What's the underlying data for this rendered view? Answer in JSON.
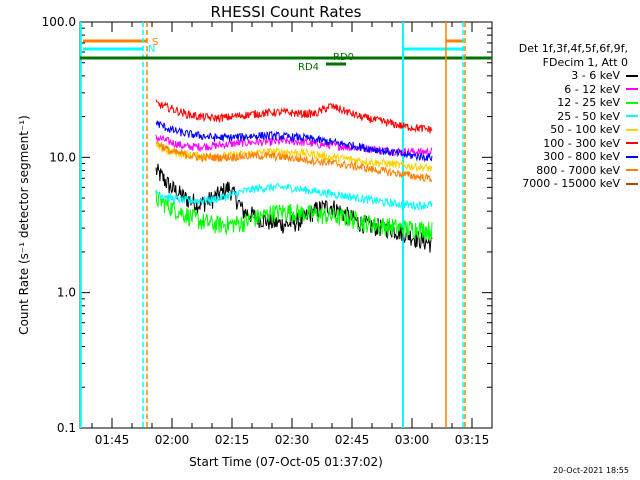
{
  "chart_data": {
    "type": "line",
    "title": "RHESSI Count Rates",
    "xlabel": "Start Time (07-Oct-05 01:37:02)",
    "ylabel": "Count Rate (s⁻¹ detector segment⁻¹)",
    "yscale": "log",
    "ylim": [
      0.1,
      100
    ],
    "yticks": [
      0.1,
      1.0,
      10.0,
      100.0
    ],
    "ytick_labels": [
      "0.1",
      "1.0",
      "10.0",
      "100.0"
    ],
    "xlim_minutes_after_0137": [
      0,
      103
    ],
    "xticks": [
      "01:45",
      "02:00",
      "02:15",
      "02:30",
      "02:45",
      "03:00",
      "03:15"
    ],
    "xtick_minutes_after_0137": [
      8,
      23,
      38,
      53,
      68,
      83,
      98
    ],
    "series": [
      {
        "name": "3 - 6 keV",
        "color": "#000000",
        "start": 19,
        "end": 88,
        "values": [
          8,
          6,
          5,
          4.5,
          5,
          6,
          4,
          3.6,
          3.3,
          3.2,
          3.4,
          4.1,
          4.4,
          3.8,
          3.3,
          3.1,
          3.0,
          2.8,
          2.5,
          2.3
        ]
      },
      {
        "name": "6 - 12 keV",
        "color": "#ff00ff",
        "start": 19,
        "end": 88,
        "values": [
          14,
          13,
          12,
          12,
          12.2,
          12.5,
          12.8,
          13,
          13,
          13.2,
          13,
          12.5,
          12.3,
          12,
          11.8,
          11.5,
          11.2,
          11,
          11,
          11
        ]
      },
      {
        "name": "12 - 25 keV",
        "color": "#00ff00",
        "start": 19,
        "end": 88,
        "values": [
          5,
          4.3,
          3.8,
          3.4,
          3.2,
          3.2,
          3.3,
          3.6,
          3.9,
          4,
          3.9,
          3.8,
          3.7,
          3.6,
          3.4,
          3.2,
          3.1,
          3,
          3,
          2.9
        ]
      },
      {
        "name": "25 - 50 keV",
        "color": "#00ffff",
        "start": 19,
        "end": 88,
        "values": [
          5.5,
          5,
          4.8,
          4.8,
          4.9,
          5.2,
          5.6,
          5.9,
          6,
          6,
          5.8,
          5.6,
          5.4,
          5.2,
          5,
          4.8,
          4.6,
          4.5,
          4.4,
          4.5
        ]
      },
      {
        "name": "50 - 100 keV",
        "color": "#ffd200",
        "start": 19,
        "end": 88,
        "values": [
          12,
          11,
          10.5,
          10.2,
          10.2,
          10.3,
          10.5,
          10.8,
          11,
          11,
          10.8,
          10.5,
          10,
          9.8,
          9.5,
          9.2,
          9,
          8.7,
          8.5,
          8.3
        ]
      },
      {
        "name": "100 - 300 keV",
        "color": "#ff0000",
        "start": 19,
        "end": 88,
        "values": [
          25,
          23,
          21,
          20,
          19.5,
          19.8,
          20.5,
          21,
          21.5,
          21.5,
          21,
          21,
          24,
          22,
          20,
          19,
          18,
          17,
          16.5,
          16
        ]
      },
      {
        "name": "300 - 800 keV",
        "color": "#0000ff",
        "start": 19,
        "end": 88,
        "values": [
          18,
          16,
          15,
          14.5,
          14,
          14,
          14.2,
          14.5,
          14.5,
          14.2,
          14,
          13.5,
          13,
          12.5,
          12,
          11.5,
          11,
          10.5,
          10.2,
          10
        ]
      },
      {
        "name": "800 - 7000 keV",
        "color": "#ff8000",
        "start": 19,
        "end": 88,
        "values": [
          13,
          11,
          10.5,
          10,
          10,
          10,
          10.2,
          10.3,
          10.2,
          10,
          9.7,
          9.4,
          9.1,
          8.8,
          8.5,
          8.1,
          7.8,
          7.5,
          7.2,
          7
        ]
      },
      {
        "name": "7000 - 15000 keV",
        "color": "#a05000",
        "start": 19,
        "end": 88,
        "values": []
      }
    ],
    "annotations": [
      {
        "text": "S",
        "color": "#ff8000"
      },
      {
        "text": "N",
        "color": "#00ffff"
      },
      {
        "text": "RD0",
        "color": "#007000"
      },
      {
        "text": "RD4",
        "color": "#007000"
      }
    ]
  },
  "legend": {
    "header_line1": "Det 1f,3f,4f,5f,6f,9f,",
    "header_line2": "FDecim 1, Att 0"
  },
  "timestamp": "20-Oct-2021 18:55",
  "colors": {
    "cyan": "#00ffff",
    "orange": "#ff8000",
    "green": "#007000"
  }
}
